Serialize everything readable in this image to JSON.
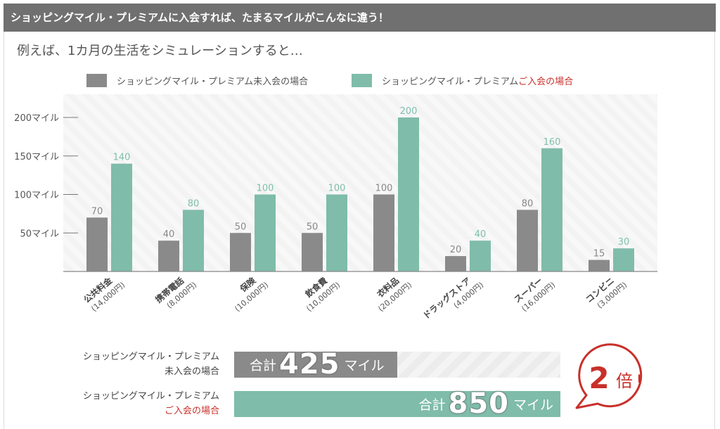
{
  "header": {
    "title": "ショッピングマイル・プレミアムに入会すれば、たまるマイルがこんなに違う！"
  },
  "subtitle": "例えば、1カ月の生活をシミュレーションすると…",
  "colors": {
    "non_member": "#8a8a8a",
    "member": "#7fbca9",
    "accent_red": "#c8302a",
    "header_bg": "#707070"
  },
  "legend": [
    {
      "label_main": "ショッピングマイル・プレミアム未入会の場合",
      "label_accent": ""
    },
    {
      "label_main": "ショッピングマイル・プレミアム",
      "label_accent": "ご入会の場合"
    }
  ],
  "chart_data": {
    "type": "bar",
    "title": "",
    "xlabel": "",
    "ylabel": "",
    "ylim": [
      0,
      200
    ],
    "y_ticks": [
      {
        "value": 50,
        "label": "50マイル"
      },
      {
        "value": 100,
        "label": "100マイル"
      },
      {
        "value": 150,
        "label": "150マイル"
      },
      {
        "value": 200,
        "label": "200マイル"
      }
    ],
    "categories": [
      {
        "name": "公共料金",
        "amount": "(14,000円)"
      },
      {
        "name": "携帯電話",
        "amount": "(8,000円)"
      },
      {
        "name": "保険",
        "amount": "(10,000円)"
      },
      {
        "name": "飲食費",
        "amount": "(10,000円)"
      },
      {
        "name": "衣料品",
        "amount": "(20,000円)"
      },
      {
        "name": "ドラッグストア",
        "amount": "(4,000円)"
      },
      {
        "name": "スーパー",
        "amount": "(16,000円)"
      },
      {
        "name": "コンビニ",
        "amount": "(3,000円)"
      }
    ],
    "series": [
      {
        "name": "ショッピングマイル・プレミアム未入会の場合",
        "values": [
          70,
          40,
          50,
          50,
          100,
          20,
          80,
          15
        ]
      },
      {
        "name": "ショッピングマイル・プレミアムご入会の場合",
        "values": [
          140,
          80,
          100,
          100,
          200,
          40,
          160,
          30
        ]
      }
    ],
    "grid": false,
    "legend_position": "top"
  },
  "totals": {
    "max": 850,
    "rows": [
      {
        "label_line1": "ショッピングマイル・プレミアム",
        "label_line2": "未入会の場合",
        "prefix": "合計",
        "value": 425,
        "value_text": "425",
        "suffix": "マイル"
      },
      {
        "label_line1": "ショッピングマイル・プレミアム",
        "label_line2": "ご入会の場合",
        "prefix": "合計",
        "value": 850,
        "value_text": "850",
        "suffix": "マイル"
      }
    ]
  },
  "badge": {
    "number": "2",
    "unit": "倍",
    "mark": "!"
  }
}
